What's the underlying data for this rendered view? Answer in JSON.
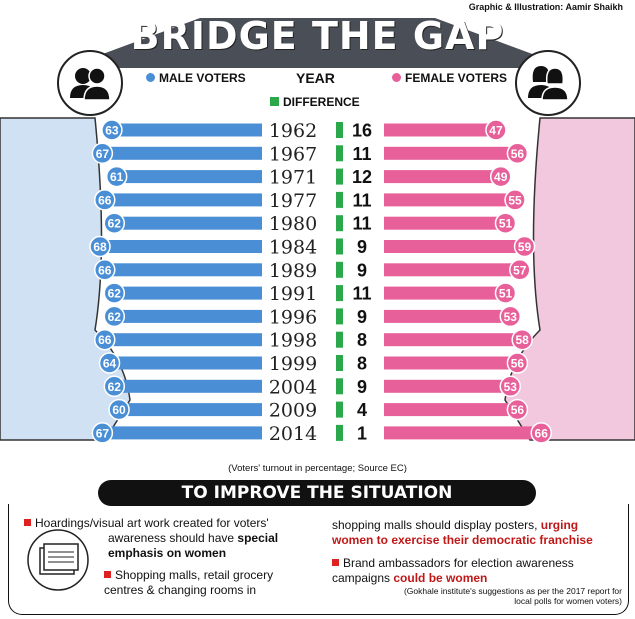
{
  "credit": "Graphic & Illustration: Aamir Shaikh",
  "title": "BRIDGE THE GAP",
  "legend": {
    "male": "MALE VOTERS",
    "year": "YEAR",
    "female": "FEMALE VOTERS",
    "difference": "DIFFERENCE"
  },
  "colors": {
    "male": "#4a8fd6",
    "female": "#e8609a",
    "difference": "#2aa84a",
    "dark": "#111111"
  },
  "chart_data": {
    "type": "bar",
    "categories": [
      "1962",
      "1967",
      "1971",
      "1977",
      "1980",
      "1984",
      "1989",
      "1991",
      "1996",
      "1998",
      "1999",
      "2004",
      "2009",
      "2014"
    ],
    "series": [
      {
        "name": "MALE VOTERS",
        "values": [
          63,
          67,
          61,
          66,
          62,
          68,
          66,
          62,
          62,
          66,
          64,
          62,
          60,
          67
        ]
      },
      {
        "name": "FEMALE VOTERS",
        "values": [
          47,
          56,
          49,
          55,
          51,
          59,
          57,
          51,
          53,
          58,
          56,
          53,
          56,
          66
        ]
      },
      {
        "name": "DIFFERENCE",
        "values": [
          16,
          11,
          12,
          11,
          11,
          9,
          9,
          11,
          9,
          8,
          8,
          9,
          4,
          1
        ]
      }
    ],
    "note": "(Voters' turnout in percentage; Source EC)"
  },
  "banner": "TO IMPROVE THE SITUATION",
  "suggestions": {
    "s1_a": "Hoardings/visual art work created for voters'",
    "s1_b": "awareness should have ",
    "s1_c": "special",
    "s1_d": "emphasis on women",
    "s2_a": "Shopping malls, retail grocery",
    "s2_b": "centres & changing rooms in",
    "s3_a": "shopping malls should display posters, ",
    "s3_b": "urging",
    "s3_c": "women to exercise their democratic franchise",
    "s4_a": "Brand ambassadors for election awareness",
    "s4_b": "campaigns ",
    "s4_c": "could be women"
  },
  "source_a": "(Gokhale institute's suggestions as per the 2017 report for",
  "source_b": "local polls for women voters)"
}
